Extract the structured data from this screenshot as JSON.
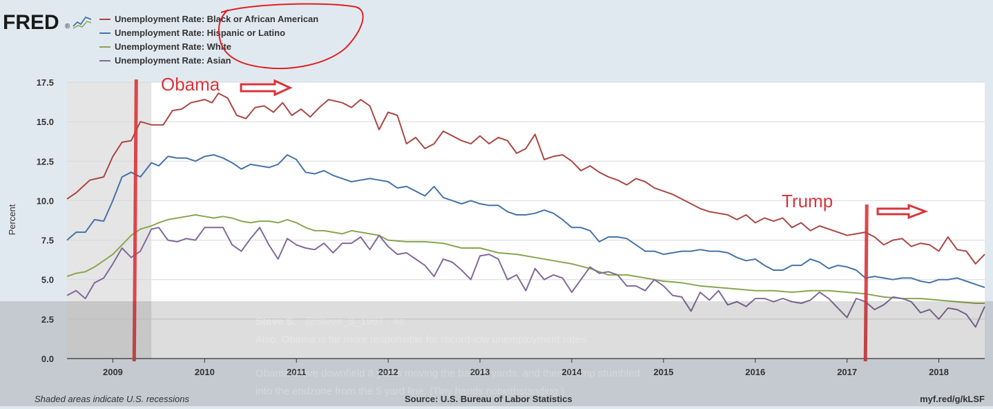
{
  "header": {
    "logo_text": "FRED",
    "logo_mark": "®",
    "logo_icon": "line-chart-icon"
  },
  "chart_data": {
    "type": "line",
    "title": "",
    "xlabel": "",
    "ylabel": "Percent",
    "ylim": [
      0,
      17.5
    ],
    "yticks": [
      0.0,
      2.5,
      5.0,
      7.5,
      10.0,
      12.5,
      15.0,
      17.5
    ],
    "ytick_labels": [
      "0.0",
      "2.5",
      "5.0",
      "7.5",
      "10.0",
      "12.5",
      "15.0",
      "17.5"
    ],
    "xlim": [
      2008.5,
      2018.5
    ],
    "xticks": [
      2009,
      2010,
      2011,
      2012,
      2013,
      2014,
      2015,
      2016,
      2017,
      2018
    ],
    "xtick_labels": [
      "2009",
      "2010",
      "2011",
      "2012",
      "2013",
      "2014",
      "2015",
      "2016",
      "2017",
      "2018"
    ],
    "grid": "horizontal",
    "legend_position": "top-left",
    "recessions": [
      {
        "start": 2008.5,
        "end": 2009.42
      }
    ],
    "series": [
      {
        "name": "Unemployment Rate: Black or African American",
        "color": "#aa4643",
        "x": [
          2008.5,
          2008.6,
          2008.75,
          2008.9,
          2009.0,
          2009.1,
          2009.2,
          2009.3,
          2009.42,
          2009.55,
          2009.65,
          2009.75,
          2009.85,
          2010.0,
          2010.08,
          2010.15,
          2010.25,
          2010.35,
          2010.45,
          2010.55,
          2010.65,
          2010.75,
          2010.85,
          2010.95,
          2011.05,
          2011.15,
          2011.25,
          2011.35,
          2011.5,
          2011.6,
          2011.7,
          2011.8,
          2011.9,
          2012.0,
          2012.1,
          2012.2,
          2012.3,
          2012.4,
          2012.5,
          2012.6,
          2012.7,
          2012.8,
          2012.9,
          2013.0,
          2013.1,
          2013.2,
          2013.3,
          2013.4,
          2013.5,
          2013.6,
          2013.7,
          2013.8,
          2013.9,
          2014.0,
          2014.1,
          2014.2,
          2014.3,
          2014.4,
          2014.5,
          2014.6,
          2014.7,
          2014.8,
          2014.9,
          2015.0,
          2015.1,
          2015.2,
          2015.3,
          2015.4,
          2015.5,
          2015.6,
          2015.7,
          2015.8,
          2015.9,
          2016.0,
          2016.1,
          2016.2,
          2016.3,
          2016.4,
          2016.5,
          2016.6,
          2016.7,
          2016.8,
          2016.9,
          2017.0,
          2017.1,
          2017.2,
          2017.3,
          2017.4,
          2017.5,
          2017.6,
          2017.7,
          2017.8,
          2017.9,
          2018.0,
          2018.1,
          2018.2,
          2018.3,
          2018.4,
          2018.5
        ],
        "values": [
          10.1,
          10.5,
          11.3,
          11.5,
          12.8,
          13.7,
          13.8,
          15.0,
          14.8,
          14.8,
          15.7,
          15.8,
          16.2,
          16.4,
          16.2,
          16.8,
          16.5,
          15.4,
          15.2,
          15.9,
          16.0,
          15.6,
          16.2,
          15.4,
          15.8,
          15.3,
          15.9,
          16.4,
          16.2,
          15.9,
          16.4,
          16.0,
          14.5,
          15.6,
          15.4,
          13.6,
          14.0,
          13.3,
          13.6,
          14.4,
          14.1,
          13.8,
          13.6,
          14.1,
          13.6,
          14.0,
          13.8,
          13.0,
          13.3,
          14.2,
          12.6,
          12.8,
          12.9,
          12.5,
          11.9,
          12.2,
          11.8,
          11.5,
          11.3,
          11.0,
          11.4,
          11.2,
          10.8,
          10.6,
          10.4,
          10.1,
          9.8,
          9.5,
          9.3,
          9.2,
          9.1,
          8.8,
          9.1,
          8.6,
          8.9,
          8.7,
          8.9,
          8.3,
          8.6,
          8.1,
          8.4,
          8.2,
          8.0,
          7.8,
          7.9,
          8.0,
          7.7,
          7.2,
          7.5,
          7.6,
          7.1,
          7.3,
          7.2,
          6.8,
          7.7,
          6.9,
          6.8,
          6.0,
          6.6
        ]
      },
      {
        "name": "Unemployment Rate: Hispanic or Latino",
        "color": "#4572a7",
        "x": [
          2008.5,
          2008.6,
          2008.7,
          2008.8,
          2008.9,
          2009.0,
          2009.1,
          2009.2,
          2009.3,
          2009.42,
          2009.5,
          2009.6,
          2009.7,
          2009.8,
          2009.9,
          2010.0,
          2010.1,
          2010.2,
          2010.3,
          2010.4,
          2010.5,
          2010.6,
          2010.7,
          2010.8,
          2010.9,
          2011.0,
          2011.1,
          2011.2,
          2011.3,
          2011.4,
          2011.5,
          2011.6,
          2011.7,
          2011.8,
          2011.9,
          2012.0,
          2012.1,
          2012.2,
          2012.3,
          2012.4,
          2012.5,
          2012.6,
          2012.7,
          2012.8,
          2012.9,
          2013.0,
          2013.1,
          2013.2,
          2013.3,
          2013.4,
          2013.5,
          2013.6,
          2013.7,
          2013.8,
          2013.9,
          2014.0,
          2014.1,
          2014.2,
          2014.3,
          2014.4,
          2014.5,
          2014.6,
          2014.7,
          2014.8,
          2014.9,
          2015.0,
          2015.1,
          2015.2,
          2015.3,
          2015.4,
          2015.5,
          2015.6,
          2015.7,
          2015.8,
          2015.9,
          2016.0,
          2016.1,
          2016.2,
          2016.3,
          2016.4,
          2016.5,
          2016.6,
          2016.7,
          2016.8,
          2016.9,
          2017.0,
          2017.1,
          2017.2,
          2017.3,
          2017.4,
          2017.5,
          2017.6,
          2017.7,
          2017.8,
          2017.9,
          2018.0,
          2018.1,
          2018.2,
          2018.3,
          2018.4,
          2018.5
        ],
        "values": [
          7.5,
          8.0,
          8.0,
          8.8,
          8.7,
          10.0,
          11.5,
          11.8,
          11.5,
          12.4,
          12.2,
          12.8,
          12.7,
          12.7,
          12.5,
          12.8,
          12.9,
          12.7,
          12.4,
          12.0,
          12.3,
          12.2,
          12.1,
          12.3,
          12.9,
          12.6,
          11.8,
          11.7,
          11.9,
          11.6,
          11.4,
          11.2,
          11.3,
          11.4,
          11.3,
          11.2,
          10.8,
          10.9,
          10.6,
          10.3,
          10.9,
          10.2,
          10.0,
          9.8,
          10.0,
          9.8,
          9.7,
          9.7,
          9.3,
          9.1,
          9.1,
          9.2,
          9.4,
          9.2,
          8.8,
          8.3,
          8.3,
          8.1,
          7.4,
          7.7,
          7.7,
          7.6,
          7.2,
          6.8,
          6.8,
          6.6,
          6.7,
          6.8,
          6.8,
          6.9,
          6.8,
          6.8,
          6.7,
          6.4,
          6.2,
          6.3,
          5.9,
          5.6,
          5.6,
          5.9,
          5.9,
          6.3,
          6.1,
          5.7,
          5.9,
          5.8,
          5.6,
          5.1,
          5.2,
          5.1,
          5.0,
          5.1,
          5.1,
          4.9,
          4.8,
          5.0,
          5.0,
          5.1,
          4.9,
          4.7,
          4.5
        ]
      },
      {
        "name": "Unemployment Rate: White",
        "color": "#89a54e",
        "x": [
          2008.5,
          2008.6,
          2008.7,
          2008.8,
          2008.9,
          2009.0,
          2009.1,
          2009.2,
          2009.3,
          2009.42,
          2009.5,
          2009.6,
          2009.7,
          2009.8,
          2009.9,
          2010.0,
          2010.1,
          2010.2,
          2010.3,
          2010.4,
          2010.5,
          2010.6,
          2010.7,
          2010.8,
          2010.9,
          2011.0,
          2011.1,
          2011.2,
          2011.3,
          2011.4,
          2011.5,
          2011.6,
          2011.7,
          2011.8,
          2011.9,
          2012.0,
          2012.2,
          2012.4,
          2012.6,
          2012.8,
          2013.0,
          2013.2,
          2013.4,
          2013.6,
          2013.8,
          2014.0,
          2014.2,
          2014.4,
          2014.6,
          2014.8,
          2015.0,
          2015.2,
          2015.4,
          2015.6,
          2015.8,
          2016.0,
          2016.2,
          2016.4,
          2016.6,
          2016.8,
          2017.0,
          2017.2,
          2017.4,
          2017.6,
          2017.8,
          2018.0,
          2018.2,
          2018.4,
          2018.5
        ],
        "values": [
          5.2,
          5.4,
          5.5,
          5.8,
          6.2,
          6.6,
          7.2,
          7.8,
          8.2,
          8.4,
          8.6,
          8.8,
          8.9,
          9.0,
          9.1,
          9.0,
          8.9,
          9.0,
          8.9,
          8.7,
          8.6,
          8.7,
          8.7,
          8.6,
          8.8,
          8.6,
          8.3,
          8.1,
          8.1,
          8.0,
          7.9,
          8.1,
          8.0,
          7.9,
          7.8,
          7.5,
          7.4,
          7.4,
          7.3,
          7.0,
          7.0,
          6.7,
          6.6,
          6.4,
          6.2,
          6.0,
          5.7,
          5.3,
          5.3,
          5.1,
          4.9,
          4.8,
          4.6,
          4.5,
          4.4,
          4.3,
          4.3,
          4.2,
          4.3,
          4.3,
          4.2,
          4.1,
          3.9,
          3.8,
          3.8,
          3.7,
          3.6,
          3.5,
          3.5
        ]
      },
      {
        "name": "Unemployment Rate: Asian",
        "color": "#80699b",
        "x": [
          2008.5,
          2008.6,
          2008.7,
          2008.8,
          2008.9,
          2009.0,
          2009.1,
          2009.2,
          2009.3,
          2009.42,
          2009.5,
          2009.6,
          2009.7,
          2009.8,
          2009.9,
          2010.0,
          2010.1,
          2010.2,
          2010.3,
          2010.4,
          2010.5,
          2010.6,
          2010.7,
          2010.8,
          2010.9,
          2011.0,
          2011.1,
          2011.2,
          2011.3,
          2011.4,
          2011.5,
          2011.6,
          2011.7,
          2011.8,
          2011.9,
          2012.0,
          2012.1,
          2012.2,
          2012.3,
          2012.4,
          2012.5,
          2012.6,
          2012.7,
          2012.8,
          2012.9,
          2013.0,
          2013.1,
          2013.2,
          2013.3,
          2013.4,
          2013.5,
          2013.6,
          2013.7,
          2013.8,
          2013.9,
          2014.0,
          2014.1,
          2014.2,
          2014.3,
          2014.4,
          2014.5,
          2014.6,
          2014.7,
          2014.8,
          2014.9,
          2015.0,
          2015.1,
          2015.2,
          2015.3,
          2015.4,
          2015.5,
          2015.6,
          2015.7,
          2015.8,
          2015.9,
          2016.0,
          2016.1,
          2016.2,
          2016.3,
          2016.4,
          2016.5,
          2016.6,
          2016.7,
          2016.8,
          2016.9,
          2017.0,
          2017.1,
          2017.2,
          2017.3,
          2017.4,
          2017.5,
          2017.6,
          2017.7,
          2017.8,
          2017.9,
          2018.0,
          2018.1,
          2018.2,
          2018.3,
          2018.4,
          2018.5
        ],
        "values": [
          4.0,
          4.3,
          3.8,
          4.8,
          5.1,
          6.0,
          7.0,
          6.4,
          6.8,
          8.2,
          8.3,
          7.5,
          7.4,
          7.6,
          7.5,
          8.3,
          8.3,
          8.3,
          7.2,
          6.8,
          7.6,
          8.3,
          7.2,
          6.3,
          7.6,
          7.2,
          7.0,
          6.9,
          7.3,
          6.7,
          7.3,
          7.3,
          7.7,
          6.9,
          7.8,
          7.1,
          6.6,
          6.7,
          6.3,
          5.9,
          5.2,
          6.3,
          6.1,
          5.6,
          5.0,
          6.5,
          6.6,
          6.3,
          5.0,
          5.3,
          4.3,
          5.7,
          5.0,
          5.3,
          5.1,
          4.2,
          5.0,
          5.8,
          5.4,
          5.5,
          5.3,
          4.6,
          4.6,
          4.3,
          5.0,
          4.6,
          4.0,
          3.9,
          3.0,
          4.2,
          3.7,
          4.3,
          3.4,
          3.6,
          3.3,
          3.8,
          3.8,
          3.6,
          3.8,
          3.6,
          3.5,
          3.7,
          4.2,
          3.8,
          3.2,
          2.6,
          3.8,
          3.6,
          3.1,
          3.4,
          3.9,
          3.8,
          3.6,
          2.9,
          3.1,
          2.5,
          3.2,
          3.1,
          2.8,
          2.0,
          3.3
        ]
      }
    ]
  },
  "annotations": {
    "obama_label": "Obama",
    "trump_label": "Trump",
    "obama_x": 2009.3,
    "trump_x": 2017.2
  },
  "tweet_overlay": {
    "author": "Steve S.",
    "handle": "@Steve_S_1967 · 4s",
    "line1": "Also, Obama is far more responsible for record-low unemployment rates.",
    "line2": "Obama drove downfield 8 years moving the ball 75 yards, and then Trump stumbled",
    "line3": "into the endzone from the 5 yard line. (Tiny hands notwithstanding.)"
  },
  "footer": {
    "recession_note": "Shaded areas indicate U.S. recessions",
    "source": "Source: U.S. Bureau of Labor Statistics",
    "link": "myf.red/g/kLSF"
  },
  "colors": {
    "background": "#e1e9f0",
    "plot_background": "#ffffff",
    "recession_shade": "#e5e5e5",
    "annotation_red": "#d9343a"
  }
}
